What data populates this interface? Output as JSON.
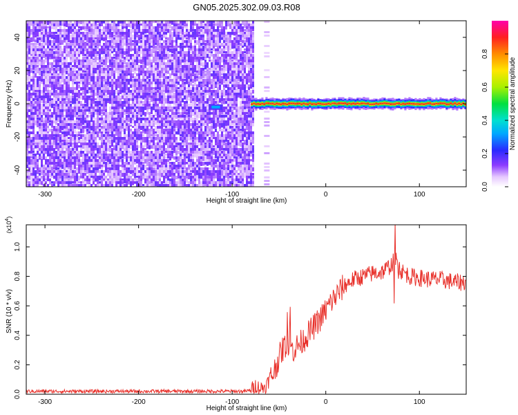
{
  "title": "GN05.2025.302.09.03.R08",
  "chart_data": [
    {
      "type": "heatmap",
      "name": "spectrogram",
      "xlabel": "Height of straight line (km)",
      "ylabel": "Frequency (Hz)",
      "xlim": [
        -320,
        150
      ],
      "ylim": [
        -50,
        50
      ],
      "xticks": [
        -300,
        -200,
        -100,
        0,
        100
      ],
      "yticks": [
        -40,
        -20,
        0,
        20,
        40
      ],
      "colorbar": {
        "label": "Normalized spectral amplitude",
        "range": [
          0.0,
          1.0
        ],
        "ticks": [
          0.0,
          0.2,
          0.4,
          0.6,
          0.8
        ]
      },
      "regions": [
        {
          "description": "broadband noise",
          "x_range": [
            -320,
            -78
          ],
          "freq_range": [
            -50,
            50
          ],
          "amplitude": 0.1
        },
        {
          "description": "narrow noise strip",
          "x_range": [
            -66,
            -60
          ],
          "freq_range": [
            -50,
            50
          ],
          "amplitude": 0.05
        },
        {
          "description": "carrier line near 0 Hz",
          "x_range": [
            -80,
            150
          ],
          "freq_center": 0,
          "amplitude": 1.0
        },
        {
          "description": "weak blob",
          "x_range": [
            -125,
            -110
          ],
          "freq_center": -2,
          "amplitude": 0.25
        }
      ]
    },
    {
      "type": "line",
      "name": "snr",
      "xlabel": "Height of straight line (km)",
      "ylabel": "SNR (10 * v/v)",
      "y_multiplier": "(x10^4)",
      "xlim": [
        -320,
        150
      ],
      "ylim": [
        0.0,
        1.15
      ],
      "xticks": [
        -300,
        -200,
        -100,
        0,
        100
      ],
      "yticks": [
        0.0,
        0.2,
        0.4,
        0.6,
        0.8,
        1.0
      ],
      "color": "#e8302a",
      "x": [
        -320,
        -300,
        -250,
        -200,
        -150,
        -100,
        -85,
        -80,
        -75,
        -70,
        -65,
        -60,
        -55,
        -50,
        -45,
        -40,
        -35,
        -30,
        -25,
        -20,
        -15,
        -10,
        -5,
        0,
        5,
        10,
        15,
        20,
        30,
        40,
        50,
        60,
        65,
        70,
        75,
        80,
        90,
        100,
        110,
        120,
        130,
        140,
        150
      ],
      "y": [
        0.02,
        0.02,
        0.02,
        0.02,
        0.02,
        0.02,
        0.02,
        0.03,
        0.06,
        0.04,
        0.05,
        0.1,
        0.16,
        0.25,
        0.32,
        0.35,
        0.3,
        0.33,
        0.36,
        0.4,
        0.44,
        0.48,
        0.52,
        0.57,
        0.62,
        0.66,
        0.7,
        0.74,
        0.78,
        0.8,
        0.82,
        0.83,
        0.85,
        0.88,
        0.92,
        0.84,
        0.8,
        0.79,
        0.78,
        0.78,
        0.77,
        0.76,
        0.76
      ]
    }
  ]
}
